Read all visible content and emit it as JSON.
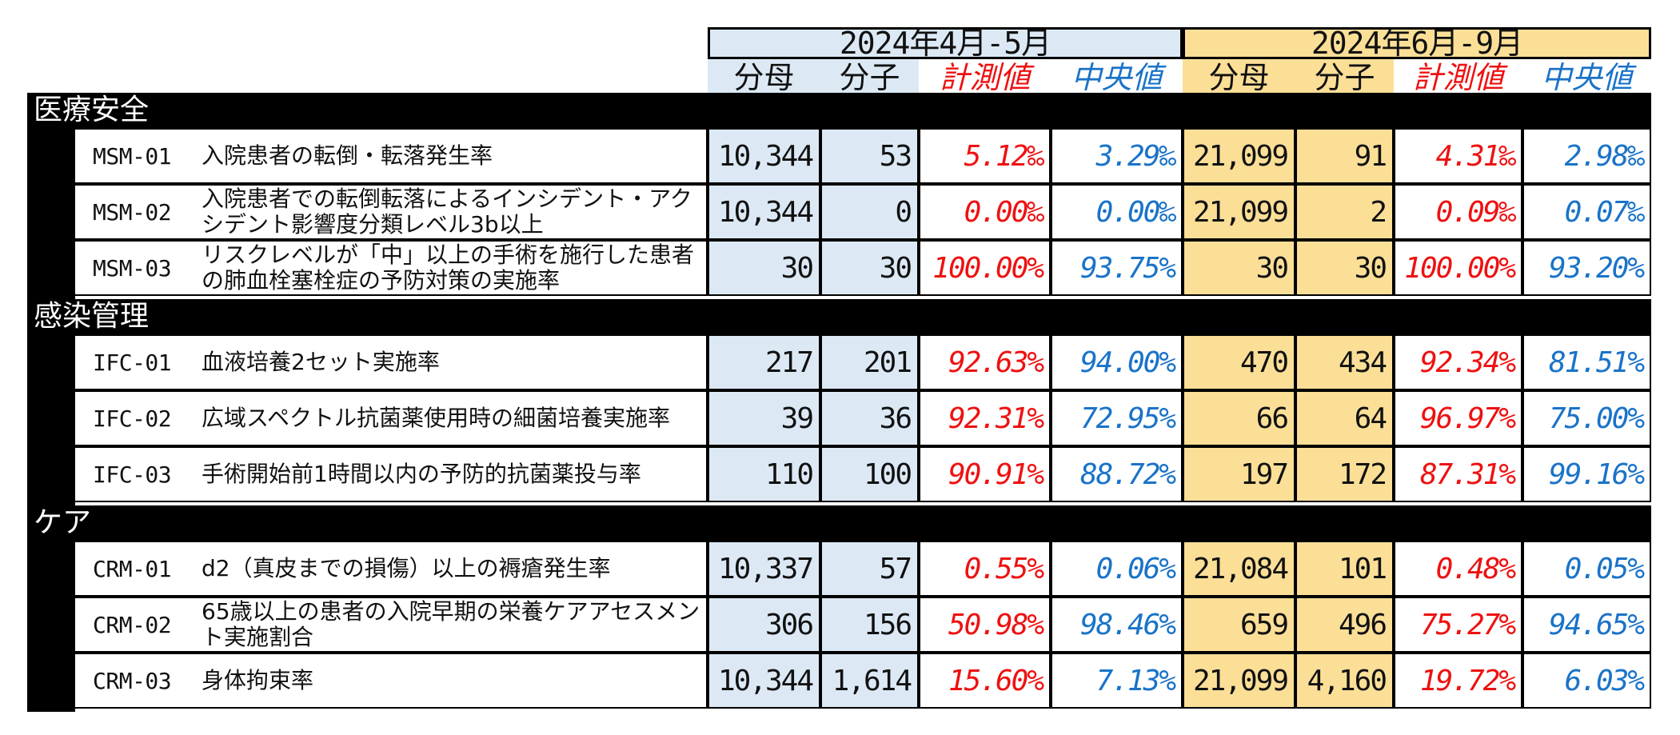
{
  "periods": {
    "p1": "2024年4月-5月",
    "p2": "2024年6月-9月"
  },
  "column_headers": {
    "denominator": "分母",
    "numerator": "分子",
    "measured": "計測値",
    "median": "中央値"
  },
  "colors": {
    "period1_fill": "#dce9f5",
    "period2_fill": "#fbdf97",
    "measured": "#ee1111",
    "median": "#1a73c8",
    "category_bar": "#000000"
  },
  "categories": [
    {
      "title": "医療安全",
      "rows": [
        {
          "code": "MSM-01",
          "name": "入院患者の転倒・転落発生率",
          "p1": [
            "10,344",
            "53",
            "5.12‰",
            "3.29‰"
          ],
          "p2": [
            "21,099",
            "91",
            "4.31‰",
            "2.98‰"
          ]
        },
        {
          "code": "MSM-02",
          "name": "入院患者での転倒転落によるインシデント・アクシデント影響度分類レベル3b以上",
          "p1": [
            "10,344",
            "0",
            "0.00‰",
            "0.00‰"
          ],
          "p2": [
            "21,099",
            "2",
            "0.09‰",
            "0.07‰"
          ]
        },
        {
          "code": "MSM-03",
          "name": "リスクレベルが「中」以上の手術を施行した患者の肺血栓塞栓症の予防対策の実施率",
          "p1": [
            "30",
            "30",
            "100.00%",
            "93.75%"
          ],
          "p2": [
            "30",
            "30",
            "100.00%",
            "93.20%"
          ]
        }
      ]
    },
    {
      "title": "感染管理",
      "rows": [
        {
          "code": "IFC-01",
          "name": "血液培養2セット実施率",
          "p1": [
            "217",
            "201",
            "92.63%",
            "94.00%"
          ],
          "p2": [
            "470",
            "434",
            "92.34%",
            "81.51%"
          ]
        },
        {
          "code": "IFC-02",
          "name": "広域スペクトル抗菌薬使用時の細菌培養実施率",
          "p1": [
            "39",
            "36",
            "92.31%",
            "72.95%"
          ],
          "p2": [
            "66",
            "64",
            "96.97%",
            "75.00%"
          ]
        },
        {
          "code": "IFC-03",
          "name": "手術開始前1時間以内の予防的抗菌薬投与率",
          "p1": [
            "110",
            "100",
            "90.91%",
            "88.72%"
          ],
          "p2": [
            "197",
            "172",
            "87.31%",
            "99.16%"
          ]
        }
      ]
    },
    {
      "title": "ケア",
      "rows": [
        {
          "code": "CRM-01",
          "name": "d2（真皮までの損傷）以上の褥瘡発生率",
          "p1": [
            "10,337",
            "57",
            "0.55%",
            "0.06%"
          ],
          "p2": [
            "21,084",
            "101",
            "0.48%",
            "0.05%"
          ]
        },
        {
          "code": "CRM-02",
          "name": "65歳以上の患者の入院早期の栄養ケアアセスメント実施割合",
          "p1": [
            "306",
            "156",
            "50.98%",
            "98.46%"
          ],
          "p2": [
            "659",
            "496",
            "75.27%",
            "94.65%"
          ]
        },
        {
          "code": "CRM-03",
          "name": "身体拘束率",
          "p1": [
            "10,344",
            "1,614",
            "15.60%",
            "7.13%"
          ],
          "p2": [
            "21,099",
            "4,160",
            "19.72%",
            "6.03%"
          ]
        }
      ]
    }
  ]
}
